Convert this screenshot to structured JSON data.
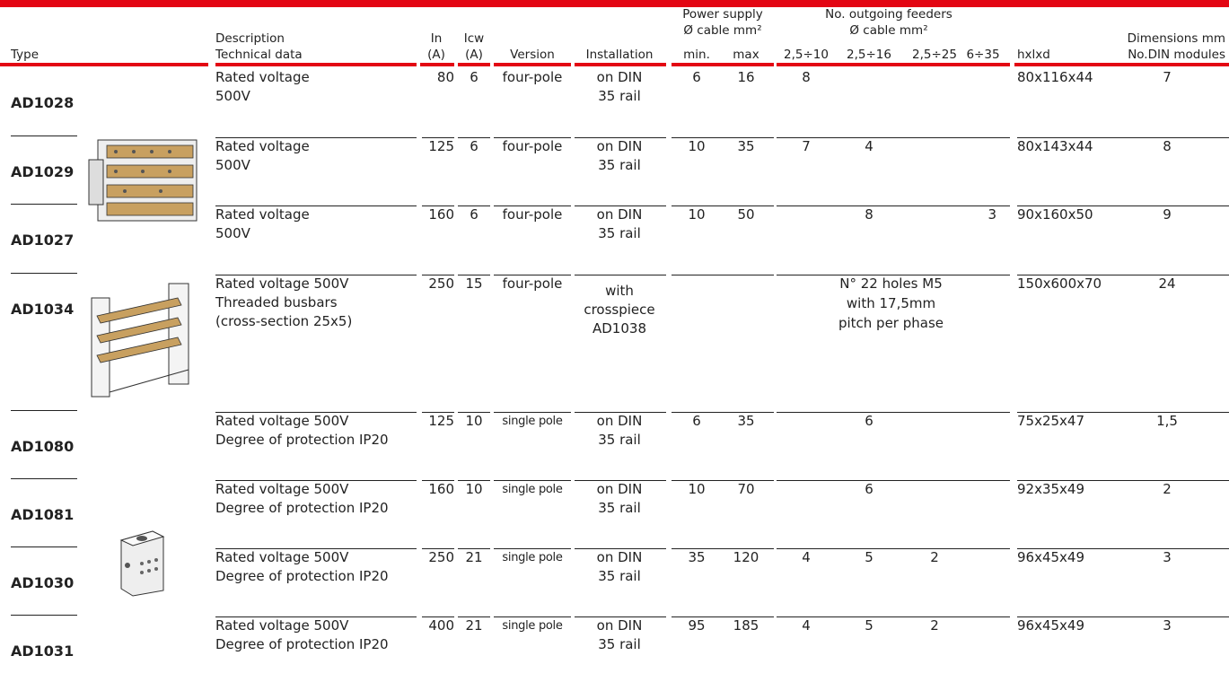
{
  "header": {
    "type": "Type",
    "description": [
      "Description",
      "Technical data"
    ],
    "in": [
      "In",
      "(A)"
    ],
    "icw": [
      "Icw",
      "(A)"
    ],
    "version": "Version",
    "installation": "Installation",
    "power_supply": {
      "title": "Power supply",
      "subtitle": "Ø cable mm²",
      "min": "min.",
      "max": "max"
    },
    "feeders": {
      "title": "No. outgoing feeders",
      "subtitle": "Ø cable mm²",
      "columns": [
        "2,5÷10",
        "2,5÷16",
        "2,5÷25",
        "6÷35"
      ]
    },
    "dimensions": {
      "title": "Dimensions mm",
      "size": "hxlxd",
      "modules": "No.DIN modules"
    }
  },
  "rows": [
    {
      "type": "AD1028",
      "description": [
        "Rated voltage",
        "500V"
      ],
      "in": 80,
      "icw": 6,
      "version": "four-pole",
      "installation": [
        "on DIN",
        "35 rail"
      ],
      "min": 6,
      "max": 16,
      "f10": 8,
      "dims": "80x116x44",
      "modules": 7
    },
    {
      "type": "AD1029",
      "description": [
        "Rated voltage",
        "500V"
      ],
      "in": 125,
      "icw": 6,
      "version": "four-pole",
      "installation": [
        "on DIN",
        "35 rail"
      ],
      "min": 10,
      "max": 35,
      "f10": 7,
      "f16": 4,
      "dims": "80x143x44",
      "modules": 8
    },
    {
      "type": "AD1027",
      "description": [
        "Rated voltage",
        "500V"
      ],
      "in": 160,
      "icw": 6,
      "version": "four-pole",
      "installation": [
        "on DIN",
        "35 rail"
      ],
      "min": 10,
      "max": 50,
      "f16": 8,
      "f35": 3,
      "dims": "90x160x50",
      "modules": 9
    },
    {
      "type": "AD1034",
      "description": [
        "Rated voltage 500V",
        "Threaded busbars",
        "(cross-section 25x5)"
      ],
      "in": 250,
      "icw": 15,
      "version": "four-pole",
      "installation": [
        "with",
        "crosspiece",
        "AD1038"
      ],
      "feeders_note": [
        "N° 22 holes M5",
        "with 17,5mm",
        "pitch per phase"
      ],
      "dims": "150x600x70",
      "modules": 24
    },
    {
      "type": "AD1080",
      "description": [
        "Rated voltage 500V",
        "Degree of protection IP20"
      ],
      "in": 125,
      "icw": 10,
      "version": "single pole",
      "installation": [
        "on DIN",
        "35 rail"
      ],
      "min": 6,
      "max": 35,
      "f16": 6,
      "dims": "75x25x47",
      "modules": "1,5"
    },
    {
      "type": "AD1081",
      "description": [
        "Rated voltage 500V",
        "Degree of protection IP20"
      ],
      "in": 160,
      "icw": 10,
      "version": "single pole",
      "installation": [
        "on DIN",
        "35 rail"
      ],
      "min": 10,
      "max": 70,
      "f16": 6,
      "dims": "92x35x49",
      "modules": 2
    },
    {
      "type": "AD1030",
      "description": [
        "Rated voltage 500V",
        "Degree of protection IP20"
      ],
      "in": 250,
      "icw": 21,
      "version": "single pole",
      "installation": [
        "on DIN",
        "35 rail"
      ],
      "min": 35,
      "max": 120,
      "f10": 4,
      "f16": 5,
      "f25": 2,
      "dims": "96x45x49",
      "modules": 3
    },
    {
      "type": "AD1031",
      "description": [
        "Rated voltage 500V",
        "Degree of protection IP20"
      ],
      "in": 400,
      "icw": 21,
      "version": "single pole",
      "installation": [
        "on DIN",
        "35 rail"
      ],
      "min": 95,
      "max": 185,
      "f10": 4,
      "f16": 5,
      "f25": 2,
      "dims": "96x45x49",
      "modules": 3
    }
  ]
}
